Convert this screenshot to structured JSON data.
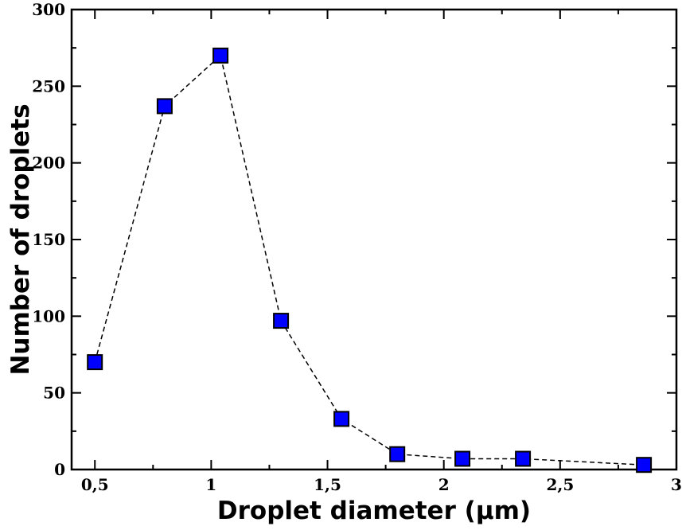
{
  "chart_data": {
    "type": "scatter",
    "xlabel": "Droplet diameter  (µm)",
    "ylabel": "Number of droplets",
    "xlim": [
      0.4,
      3.0
    ],
    "ylim": [
      0,
      300
    ],
    "x_ticks": [
      0.5,
      1,
      1.5,
      2,
      2.5,
      3
    ],
    "x_tick_labels": [
      "0,5",
      "1",
      "1,5",
      "2",
      "2,5",
      "3"
    ],
    "y_ticks": [
      0,
      50,
      100,
      150,
      200,
      250,
      300
    ],
    "y_tick_labels": [
      "0",
      "50",
      "100",
      "150",
      "200",
      "250",
      "300"
    ],
    "grid": false,
    "marker": "square",
    "line_style": "dashed",
    "colors": {
      "marker_fill": "#0000ff",
      "marker_stroke": "#000000",
      "line": "#000000"
    },
    "series": [
      {
        "x": [
          0.5,
          0.8,
          1.04,
          1.3,
          1.56,
          1.8,
          2.08,
          2.34,
          2.86
        ],
        "y": [
          70,
          237,
          270,
          97,
          33,
          10,
          7,
          7,
          3
        ]
      }
    ]
  }
}
